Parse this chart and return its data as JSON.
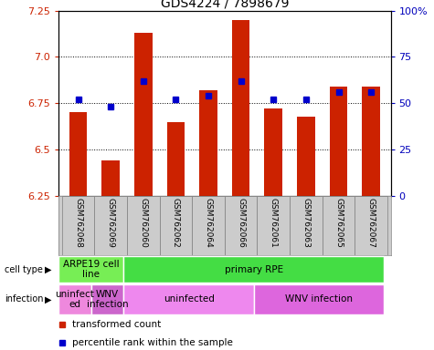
{
  "title": "GDS4224 / 7898679",
  "samples": [
    "GSM762068",
    "GSM762069",
    "GSM762060",
    "GSM762062",
    "GSM762064",
    "GSM762066",
    "GSM762061",
    "GSM762063",
    "GSM762065",
    "GSM762067"
  ],
  "transformed_count": [
    6.7,
    6.44,
    7.13,
    6.65,
    6.82,
    7.2,
    6.72,
    6.68,
    6.84,
    6.84
  ],
  "percentile_rank": [
    52,
    48,
    62,
    52,
    54,
    62,
    52,
    52,
    56,
    56
  ],
  "ylim_left": [
    6.25,
    7.25
  ],
  "ylim_right": [
    0,
    100
  ],
  "yticks_left": [
    6.25,
    6.5,
    6.75,
    7.0,
    7.25
  ],
  "yticks_right": [
    0,
    25,
    50,
    75,
    100
  ],
  "bar_color": "#cc2200",
  "dot_color": "#0000cc",
  "background_color": "#ffffff",
  "cell_type_groups": [
    {
      "label": "ARPE19 cell\nline",
      "start": 0,
      "end": 2,
      "color": "#77ee55"
    },
    {
      "label": "primary RPE",
      "start": 2,
      "end": 10,
      "color": "#44dd44"
    }
  ],
  "infection_groups": [
    {
      "label": "uninfect\ned",
      "start": 0,
      "end": 1,
      "color": "#ee88dd"
    },
    {
      "label": "WNV\ninfection",
      "start": 1,
      "end": 2,
      "color": "#cc66cc"
    },
    {
      "label": "uninfected",
      "start": 2,
      "end": 6,
      "color": "#ee88ee"
    },
    {
      "label": "WNV infection",
      "start": 6,
      "end": 10,
      "color": "#dd66dd"
    }
  ],
  "legend_items": [
    {
      "label": "transformed count",
      "color": "#cc2200"
    },
    {
      "label": "percentile rank within the sample",
      "color": "#0000cc"
    }
  ],
  "row_labels": [
    "cell type",
    "infection"
  ],
  "tick_label_color_left": "#cc2200",
  "tick_label_color_right": "#0000bb",
  "sample_label_bg": "#cccccc",
  "grid_dotted_color": "#000000"
}
